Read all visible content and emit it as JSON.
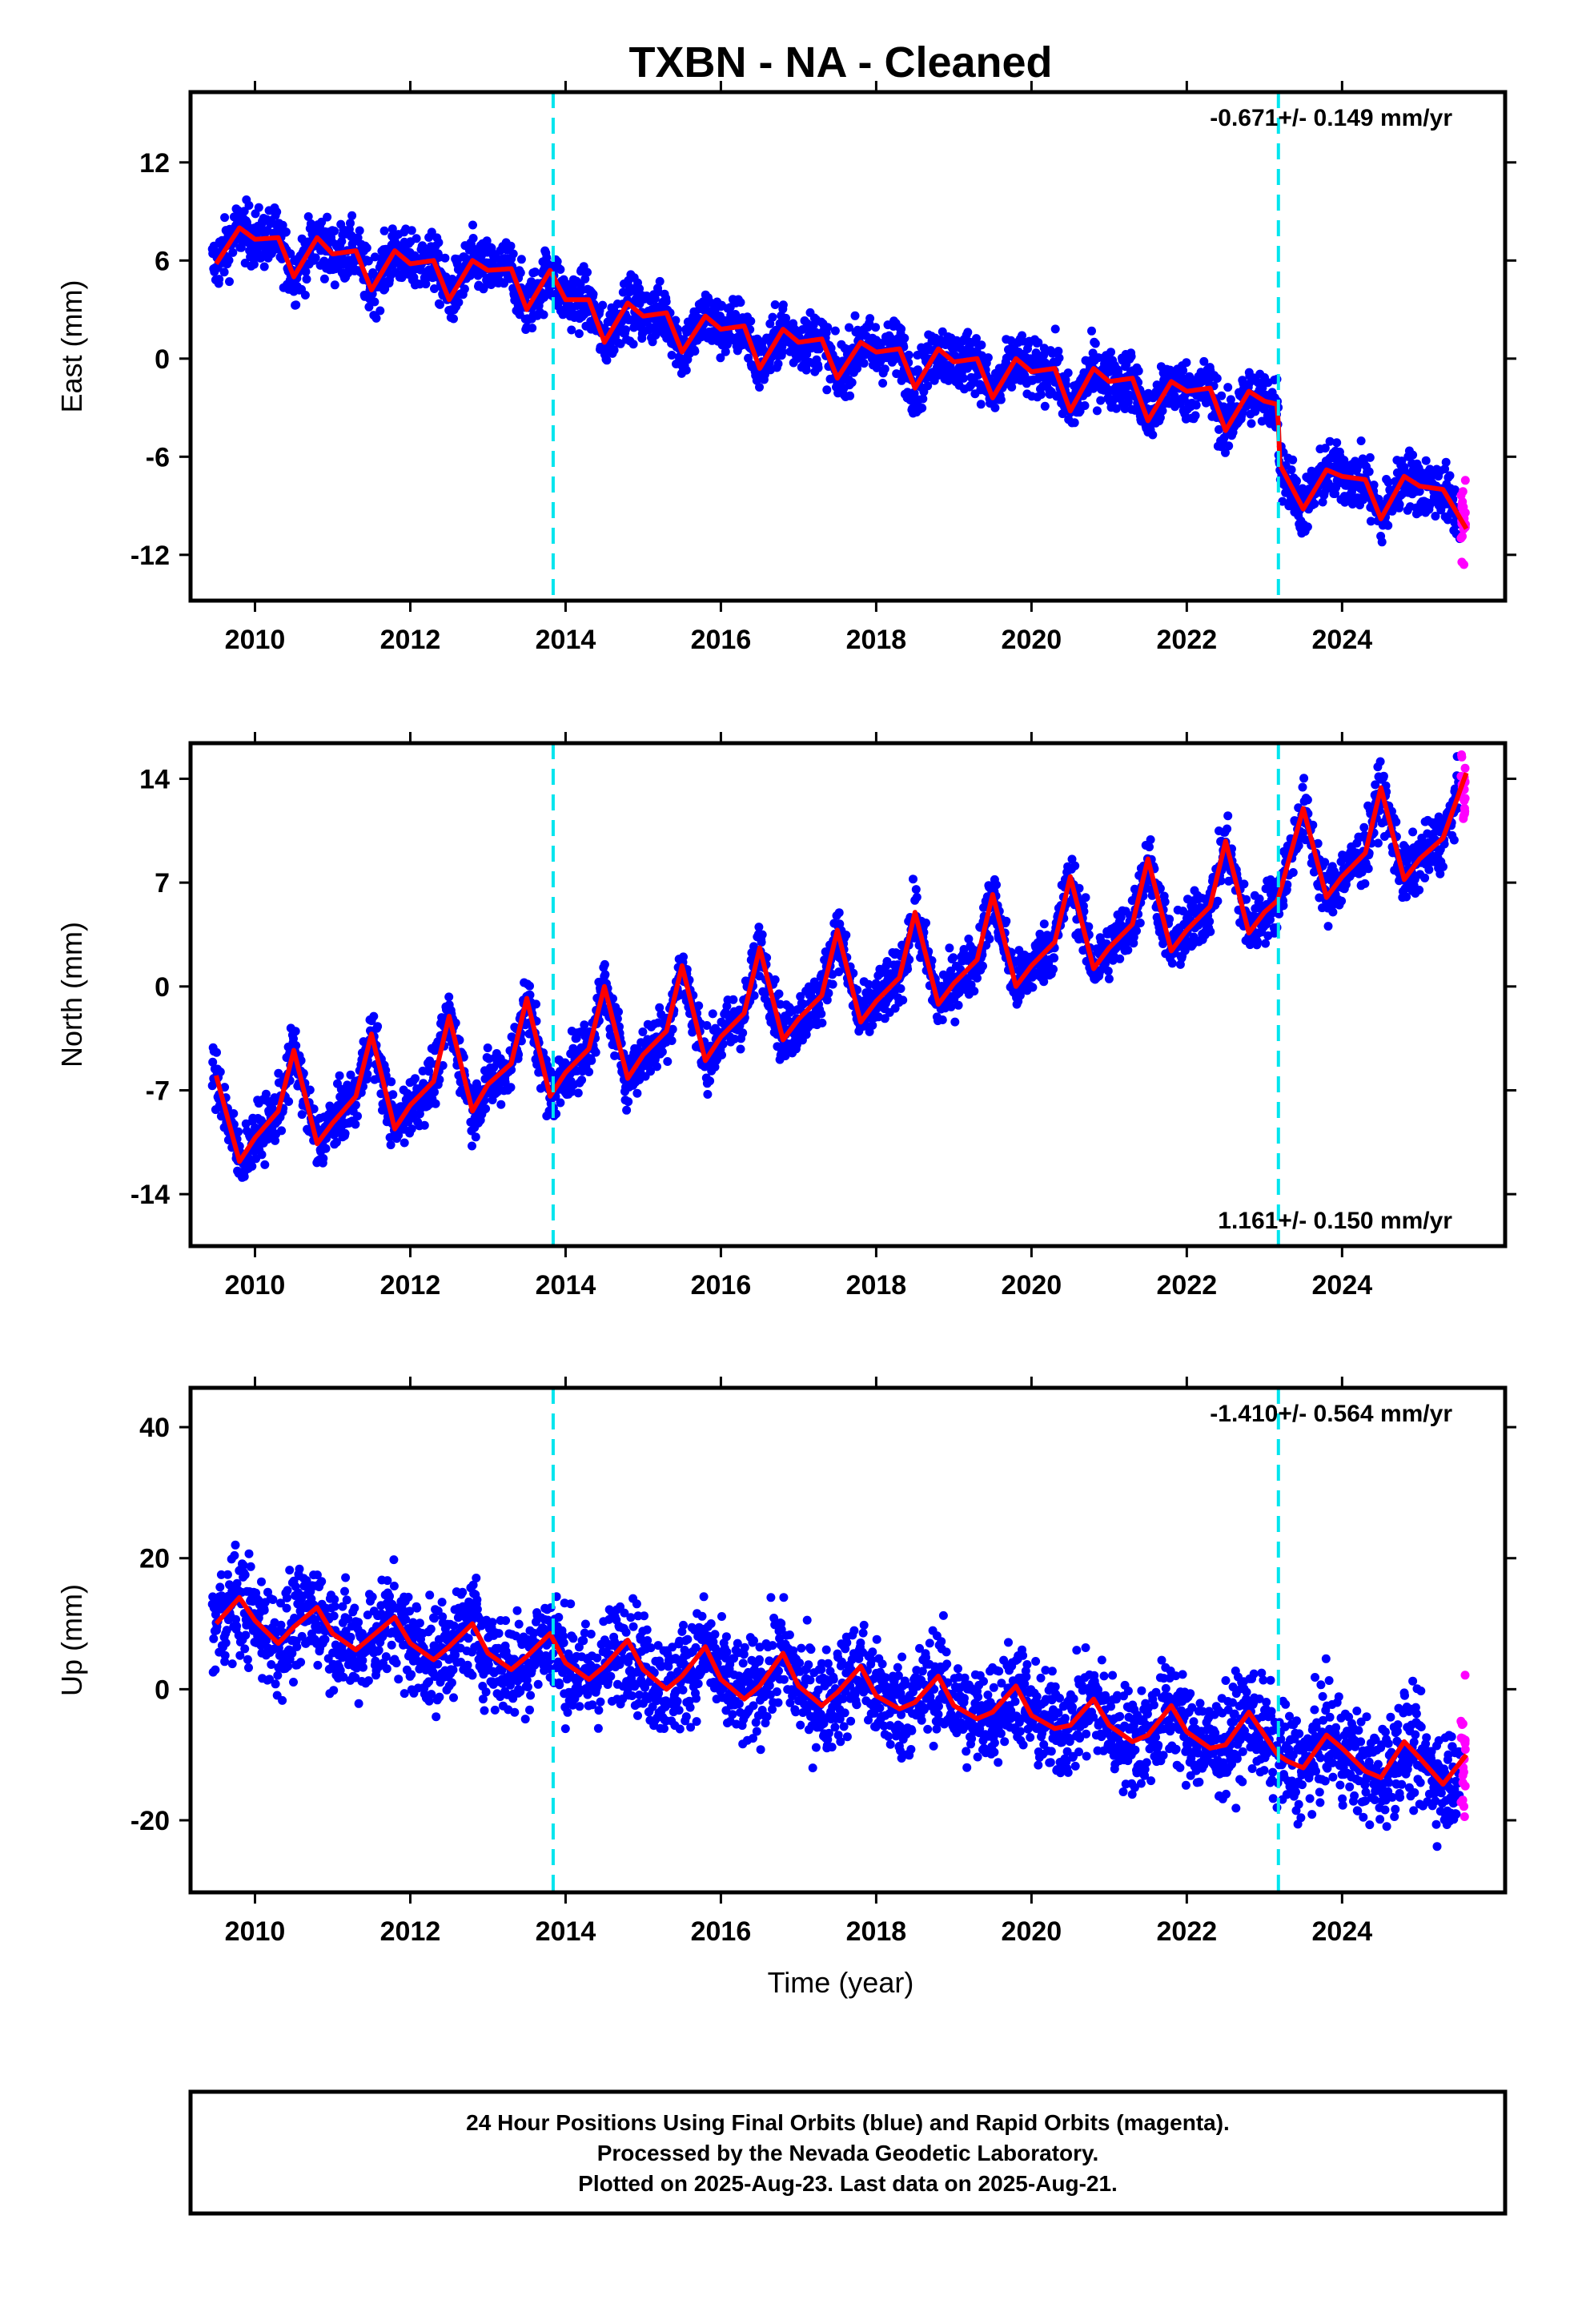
{
  "chart_data": {
    "title": "TXBN  - NA - Cleaned",
    "xlabel": "Time (year)",
    "xticks": [
      "2010",
      "2012",
      "2014",
      "2016",
      "2018",
      "2020",
      "2022",
      "2024"
    ],
    "xlim": [
      2009.17,
      2026.1
    ],
    "dashed_lines": [
      2013.84,
      2023.18
    ],
    "colors": {
      "final": "#0000ff",
      "rapid": "#ff00ff",
      "model": "#ff0000",
      "event": "#00e5ee"
    },
    "panels": [
      {
        "type": "scatter",
        "ylabel": "East (mm)",
        "ylim": [
          -14.8,
          16.3
        ],
        "yticks": [
          "12",
          "6",
          "0",
          "-6",
          "-12"
        ],
        "rate_text": "-0.671+/- 0.149 mm/yr",
        "rate_position": "top-right",
        "model_fit": {
          "series": "model",
          "x": [
            2009.5,
            2009.8,
            2010.0,
            2010.3,
            2010.5,
            2010.8,
            2011.0,
            2011.3,
            2011.5,
            2011.8,
            2012.0,
            2012.3,
            2012.5,
            2012.8,
            2013.0,
            2013.3,
            2013.5,
            2013.8,
            2014.0,
            2014.3,
            2014.5,
            2014.8,
            2015.0,
            2015.3,
            2015.5,
            2015.8,
            2016.0,
            2016.3,
            2016.5,
            2016.8,
            2017.0,
            2017.3,
            2017.5,
            2017.8,
            2018.0,
            2018.3,
            2018.5,
            2018.8,
            2019.0,
            2019.3,
            2019.5,
            2019.8,
            2020.0,
            2020.3,
            2020.5,
            2020.8,
            2021.0,
            2021.3,
            2021.5,
            2021.8,
            2022.0,
            2022.3,
            2022.5,
            2022.8,
            2023.0,
            2023.17,
            2023.2,
            2023.5,
            2023.8,
            2024.0,
            2024.3,
            2024.5,
            2024.8,
            2025.0,
            2025.3,
            2025.6
          ],
          "y": [
            5.8,
            8.0,
            7.3,
            7.4,
            5.0,
            7.4,
            6.4,
            6.6,
            4.2,
            6.6,
            5.8,
            6.0,
            3.6,
            6.0,
            5.4,
            5.5,
            3.0,
            5.4,
            3.6,
            3.6,
            1.0,
            3.4,
            2.6,
            2.8,
            0.4,
            2.6,
            1.8,
            2.0,
            -0.6,
            1.8,
            1.0,
            1.2,
            -1.2,
            1.0,
            0.4,
            0.6,
            -1.8,
            0.6,
            -0.2,
            0.0,
            -2.4,
            0.0,
            -0.8,
            -0.6,
            -3.2,
            -0.6,
            -1.4,
            -1.2,
            -3.8,
            -1.4,
            -2.0,
            -1.8,
            -4.4,
            -2.0,
            -2.6,
            -2.8,
            -6.5,
            -9.2,
            -6.8,
            -7.2,
            -7.4,
            -9.8,
            -7.2,
            -7.8,
            -8.0,
            -10.4
          ]
        }
      },
      {
        "type": "scatter",
        "ylabel": "North (mm)",
        "ylim": [
          -17.5,
          16.4
        ],
        "yticks": [
          "14",
          "7",
          "0",
          "-7",
          "-14"
        ],
        "rate_text": "1.161+/- 0.150 mm/yr",
        "rate_position": "bottom-right",
        "model_fit": {
          "series": "model",
          "x": [
            2009.5,
            2009.8,
            2010.0,
            2010.3,
            2010.5,
            2010.8,
            2011.0,
            2011.3,
            2011.5,
            2011.8,
            2012.0,
            2012.3,
            2012.5,
            2012.8,
            2013.0,
            2013.3,
            2013.5,
            2013.8,
            2014.0,
            2014.3,
            2014.5,
            2014.8,
            2015.0,
            2015.3,
            2015.5,
            2015.8,
            2016.0,
            2016.3,
            2016.5,
            2016.8,
            2017.0,
            2017.3,
            2017.5,
            2017.8,
            2018.0,
            2018.3,
            2018.5,
            2018.8,
            2019.0,
            2019.3,
            2019.5,
            2019.8,
            2020.0,
            2020.3,
            2020.5,
            2020.8,
            2021.0,
            2021.3,
            2021.5,
            2021.8,
            2022.0,
            2022.3,
            2022.5,
            2022.8,
            2023.0,
            2023.17,
            2023.5,
            2023.8,
            2024.0,
            2024.3,
            2024.5,
            2024.8,
            2025.0,
            2025.3,
            2025.6
          ],
          "y": [
            -6.0,
            -11.8,
            -10.2,
            -8.4,
            -4.3,
            -10.6,
            -9.2,
            -7.4,
            -3.2,
            -9.6,
            -8.0,
            -6.4,
            -2.0,
            -8.4,
            -6.6,
            -5.2,
            -0.8,
            -7.4,
            -5.8,
            -4.2,
            0.0,
            -6.2,
            -4.6,
            -3.0,
            1.4,
            -5.0,
            -3.4,
            -1.8,
            2.6,
            -3.6,
            -2.2,
            -0.6,
            3.8,
            -2.4,
            -1.0,
            0.6,
            5.0,
            -1.2,
            0.2,
            1.8,
            6.2,
            0.0,
            1.4,
            3.0,
            7.4,
            1.2,
            2.6,
            4.2,
            8.6,
            2.4,
            3.8,
            5.4,
            9.8,
            3.6,
            5.0,
            5.8,
            12.0,
            6.0,
            7.4,
            9.0,
            13.4,
            7.2,
            8.6,
            10.0,
            14.4
          ]
        }
      },
      {
        "type": "scatter",
        "ylabel": "Up (mm)",
        "ylim": [
          -31,
          46
        ],
        "yticks": [
          "40",
          "20",
          "0",
          "-20"
        ],
        "rate_text": "-1.410+/- 0.564 mm/yr",
        "rate_position": "top-right",
        "model_fit": {
          "series": "model",
          "x": [
            2009.5,
            2009.8,
            2010.0,
            2010.3,
            2010.5,
            2010.8,
            2011.0,
            2011.3,
            2011.5,
            2011.8,
            2012.0,
            2012.3,
            2012.5,
            2012.8,
            2013.0,
            2013.3,
            2013.5,
            2013.8,
            2014.0,
            2014.3,
            2014.5,
            2014.8,
            2015.0,
            2015.3,
            2015.5,
            2015.8,
            2016.0,
            2016.3,
            2016.5,
            2016.8,
            2017.0,
            2017.3,
            2017.5,
            2017.8,
            2018.0,
            2018.3,
            2018.5,
            2018.8,
            2019.0,
            2019.3,
            2019.5,
            2019.8,
            2020.0,
            2020.3,
            2020.5,
            2020.8,
            2021.0,
            2021.3,
            2021.5,
            2021.8,
            2022.0,
            2022.3,
            2022.5,
            2022.8,
            2023.0,
            2023.17,
            2023.3,
            2023.5,
            2023.8,
            2024.0,
            2024.3,
            2024.5,
            2024.8,
            2025.0,
            2025.3,
            2025.6
          ],
          "y": [
            10.0,
            14.0,
            10.5,
            7.0,
            9.5,
            12.5,
            8.5,
            6.0,
            8.0,
            11.0,
            7.0,
            4.5,
            6.5,
            10.0,
            5.5,
            3.0,
            5.0,
            8.5,
            4.0,
            1.5,
            3.5,
            7.5,
            3.0,
            0.0,
            2.0,
            6.5,
            1.5,
            -1.5,
            0.5,
            5.5,
            0.5,
            -2.5,
            -0.5,
            3.5,
            -1.0,
            -3.0,
            -2.0,
            2.0,
            -2.5,
            -4.5,
            -3.5,
            0.5,
            -4.0,
            -6.0,
            -5.5,
            -1.5,
            -5.5,
            -8.0,
            -7.0,
            -2.5,
            -6.5,
            -9.0,
            -8.5,
            -3.5,
            -7.0,
            -10.0,
            -11.0,
            -12.0,
            -7.0,
            -9.0,
            -12.5,
            -13.5,
            -8.0,
            -10.5,
            -14.5,
            -10.0
          ]
        }
      }
    ],
    "legend_box": [
      "24 Hour Positions Using Final Orbits (blue) and Rapid Orbits (magenta).",
      "Processed by the Nevada Geodetic Laboratory.",
      "Plotted on 2025-Aug-23. Last data on 2025-Aug-21."
    ]
  }
}
